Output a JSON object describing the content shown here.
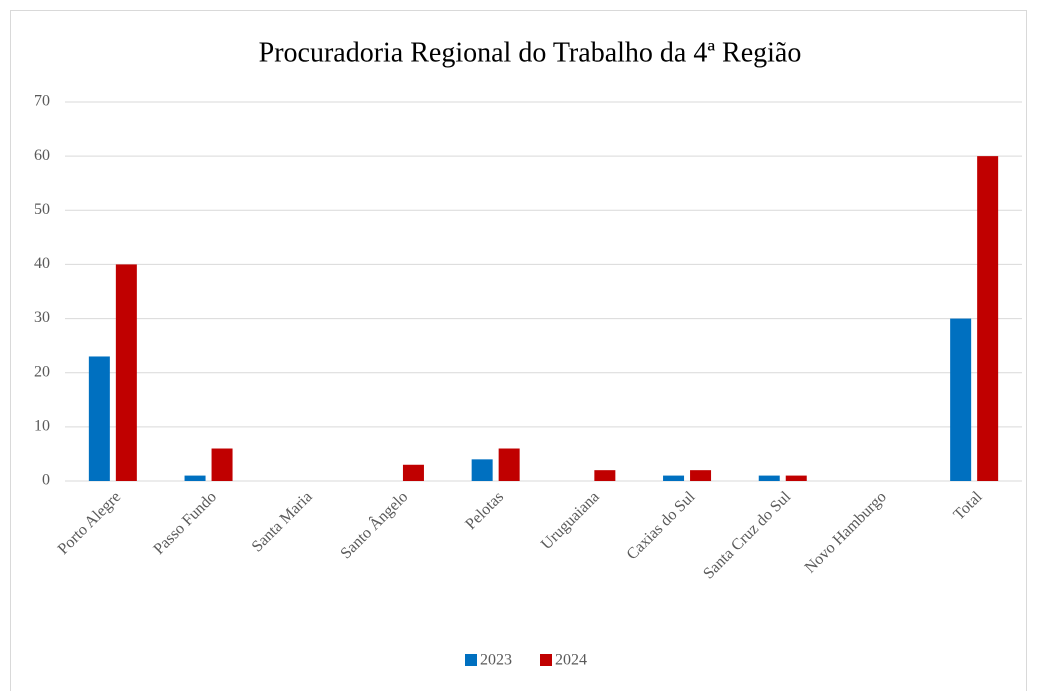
{
  "chart_data": {
    "type": "bar",
    "title": "Procuradoria Regional do Trabalho da 4ª Região",
    "categories": [
      "Porto Alegre",
      "Passo Fundo",
      "Santa Maria",
      "Santo Ângelo",
      "Pelotas",
      "Uruguaiana",
      "Caxias do Sul",
      "Santa Cruz do Sul",
      "Novo Hamburgo",
      "Total"
    ],
    "series": [
      {
        "name": "2023",
        "color": "#0070c0",
        "values": [
          23,
          1,
          0,
          0,
          4,
          0,
          1,
          1,
          0,
          30
        ]
      },
      {
        "name": "2024",
        "color": "#c00000",
        "values": [
          40,
          6,
          0,
          3,
          6,
          2,
          2,
          1,
          0,
          60
        ]
      }
    ],
    "ylim": [
      0,
      70
    ],
    "yticks": [
      0,
      10,
      20,
      30,
      40,
      50,
      60,
      70
    ],
    "grid": true,
    "legend": "bottom"
  }
}
